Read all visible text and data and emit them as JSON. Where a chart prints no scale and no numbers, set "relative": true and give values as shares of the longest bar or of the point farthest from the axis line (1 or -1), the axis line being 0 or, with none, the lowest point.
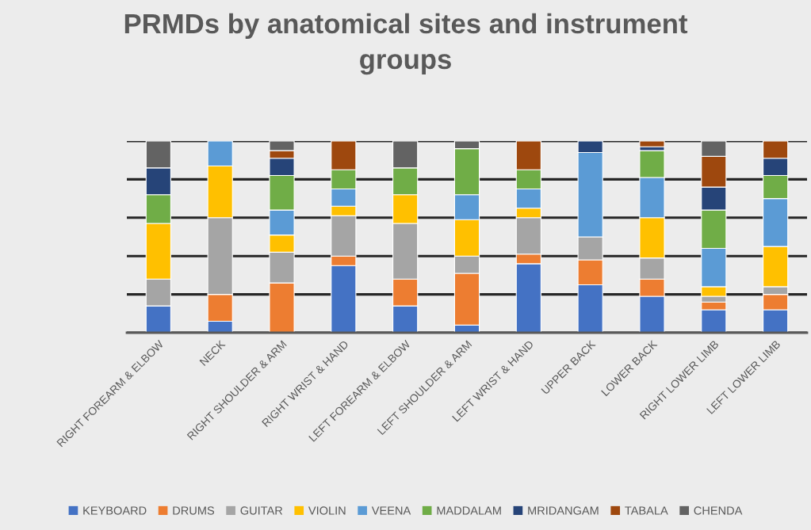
{
  "chart_data": {
    "type": "bar",
    "title": "PRMDs by anatomical sites and instrument groups",
    "stacked": true,
    "relative": true,
    "grid": "y",
    "legend": "bottom",
    "categories": [
      "RIGHT FOREARM & ELBOW",
      "NECK",
      "RIGHT SHOULDER & ARM",
      "RIGHT WRIST & HAND",
      "LEFT FOREARM & ELBOW",
      "LEFT SHOULDER & ARM",
      "LEFT WRIST & HAND",
      "UPPER BACK",
      "LOWER BACK",
      "RIGHT LOWER LIMB",
      "LEFT LOWER LIMB"
    ],
    "series": [
      {
        "name": "KEYBOARD",
        "color": "#4472c4",
        "values": [
          0.14,
          0.06,
          0,
          0.35,
          0.14,
          0.04,
          0.36,
          0.25,
          0.19,
          0.12,
          0.12
        ]
      },
      {
        "name": "DRUMS",
        "color": "#ed7d31",
        "values": [
          0,
          0.14,
          0.26,
          0.05,
          0.14,
          0.27,
          0.05,
          0.13,
          0.09,
          0.04,
          0.08
        ]
      },
      {
        "name": "GUITAR",
        "color": "#a5a5a5",
        "values": [
          0.14,
          0.4,
          0.16,
          0.21,
          0.29,
          0.09,
          0.19,
          0.12,
          0.11,
          0.03,
          0.04
        ]
      },
      {
        "name": "VIOLIN",
        "color": "#ffc000",
        "values": [
          0.29,
          0.27,
          0.09,
          0.05,
          0.15,
          0.19,
          0.05,
          0,
          0.21,
          0.05,
          0.21
        ]
      },
      {
        "name": "VEENA",
        "color": "#5b9bd5",
        "values": [
          0,
          0.13,
          0.13,
          0.09,
          0,
          0.13,
          0.1,
          0.44,
          0.21,
          0.2,
          0.25
        ]
      },
      {
        "name": "MADDALAM",
        "color": "#70ad47",
        "values": [
          0.15,
          0,
          0.18,
          0.1,
          0.14,
          0.24,
          0.1,
          0,
          0.14,
          0.2,
          0.12
        ]
      },
      {
        "name": "MRIDANGAM",
        "color": "#264478",
        "values": [
          0.14,
          0,
          0.09,
          0,
          0,
          0,
          0,
          0.06,
          0.02,
          0.12,
          0.09
        ]
      },
      {
        "name": "TABALA",
        "color": "#9e480e",
        "values": [
          0,
          0,
          0.04,
          0.15,
          0,
          0,
          0.15,
          0,
          0.03,
          0.16,
          0.09
        ]
      },
      {
        "name": "CHENDA",
        "color": "#636363",
        "values": [
          0.14,
          0,
          0.05,
          0,
          0.14,
          0.04,
          0,
          0,
          0,
          0.08,
          0
        ]
      }
    ]
  }
}
